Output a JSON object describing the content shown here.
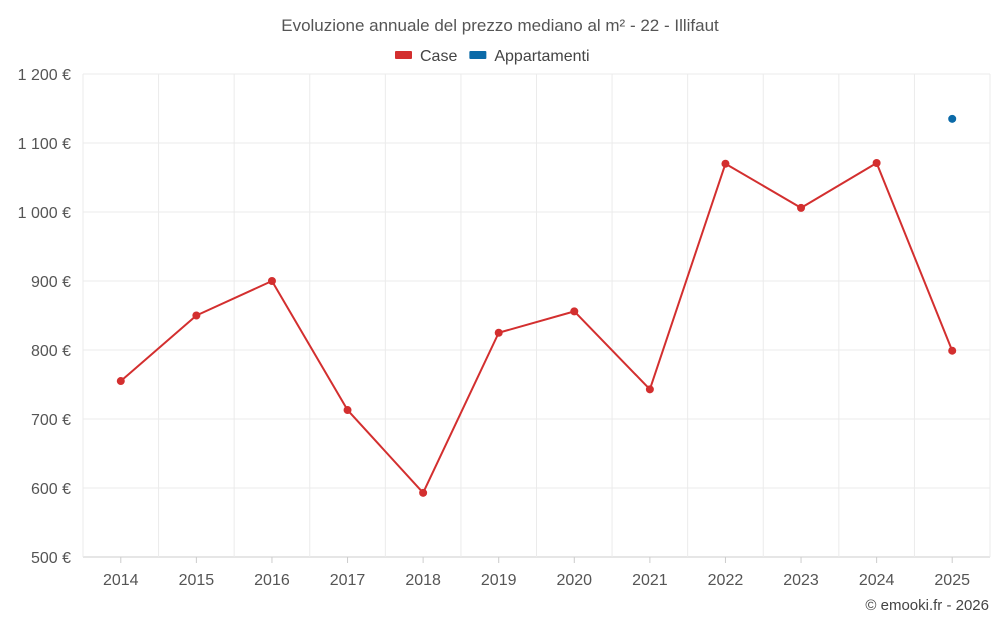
{
  "chart_data": {
    "type": "line",
    "title": "Evoluzione annuale del prezzo mediano al m² - 22 - Illifaut",
    "categories": [
      "2014",
      "2015",
      "2016",
      "2017",
      "2018",
      "2019",
      "2020",
      "2021",
      "2022",
      "2023",
      "2024",
      "2025"
    ],
    "ylim": [
      500,
      1200
    ],
    "yticks": [
      500,
      600,
      700,
      800,
      900,
      1000,
      1100,
      1200
    ],
    "ytick_labels": [
      "500 €",
      "600 €",
      "700 €",
      "800 €",
      "900 €",
      "1 000 €",
      "1 100 €",
      "1 200 €"
    ],
    "grid": true,
    "legend_position": "top-center",
    "series": [
      {
        "name": "Case",
        "color": "#d32f2f",
        "values": [
          755,
          850,
          900,
          713,
          593,
          825,
          856,
          743,
          1070,
          1006,
          1071,
          799
        ]
      },
      {
        "name": "Appartamenti",
        "color": "#0b6aa8",
        "values": [
          null,
          null,
          null,
          null,
          null,
          null,
          null,
          null,
          null,
          null,
          null,
          1135
        ]
      }
    ]
  },
  "credit": "© emooki.fr - 2026"
}
